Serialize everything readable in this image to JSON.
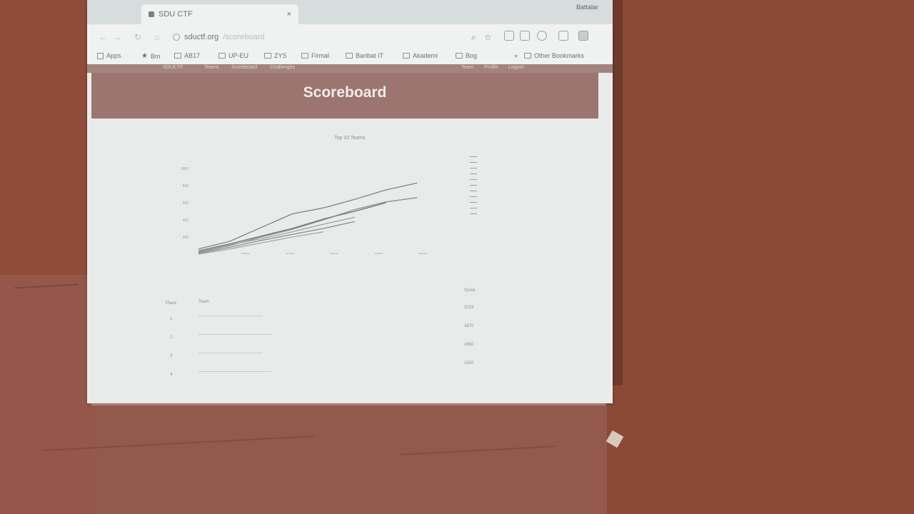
{
  "browser": {
    "tab_title": "SDU CTF",
    "tab_close": "×",
    "profile": "Battalar",
    "url_domain": "sductf.org",
    "url_path": "/scoreboard",
    "bookmarks": [
      "Apps",
      "Bm",
      "AB17",
      "UP-EU",
      "ZYS",
      "Firmal",
      "Baribat IT",
      "Akademi",
      "Bog"
    ],
    "other_bookmarks": "Other Bookmarks"
  },
  "page_nav": {
    "left": [
      "SDUCTF",
      "Teams",
      "Scoreboard",
      "Challenges"
    ],
    "right": [
      "Team",
      "Profile",
      "Logout"
    ]
  },
  "header": {
    "title": "Scoreboard"
  },
  "chart_data": {
    "type": "line",
    "title": "Top 10 Teams",
    "y_ticks": [
      "1000",
      "800",
      "600",
      "400",
      "200"
    ],
    "x_ticks": [
      "",
      "",
      "",
      "",
      "",
      ""
    ],
    "ylim": [
      0,
      1000
    ],
    "series": [
      {
        "name": "",
        "points": [
          [
            0,
            60
          ],
          [
            1,
            150
          ],
          [
            2,
            310
          ],
          [
            3,
            470
          ],
          [
            4,
            540
          ],
          [
            5,
            640
          ],
          [
            6,
            750
          ],
          [
            7,
            830
          ]
        ]
      },
      {
        "name": "",
        "points": [
          [
            0,
            20
          ],
          [
            1,
            100
          ],
          [
            2,
            200
          ],
          [
            3,
            290
          ],
          [
            4,
            400
          ],
          [
            5,
            520
          ],
          [
            6,
            610
          ],
          [
            7,
            660
          ]
        ]
      },
      {
        "name": "",
        "points": [
          [
            0,
            40
          ],
          [
            1,
            120
          ],
          [
            2,
            210
          ],
          [
            3,
            300
          ],
          [
            4,
            410
          ],
          [
            5,
            500
          ],
          [
            6,
            600
          ]
        ]
      },
      {
        "name": "",
        "points": [
          [
            0,
            30
          ],
          [
            1,
            110
          ],
          [
            2,
            180
          ],
          [
            3,
            260
          ],
          [
            4,
            350
          ],
          [
            5,
            430
          ]
        ]
      },
      {
        "name": "",
        "points": [
          [
            0,
            10
          ],
          [
            1,
            80
          ],
          [
            2,
            160
          ],
          [
            3,
            230
          ],
          [
            4,
            300
          ],
          [
            5,
            380
          ]
        ]
      },
      {
        "name": "",
        "points": [
          [
            0,
            0
          ],
          [
            1,
            60
          ],
          [
            2,
            130
          ],
          [
            3,
            200
          ],
          [
            4,
            260
          ]
        ]
      }
    ]
  },
  "legend": [
    "",
    "",
    "",
    "",
    "",
    "",
    "",
    "",
    "",
    "",
    ""
  ],
  "table": {
    "rank_header": "Place",
    "team_header": "Team",
    "score_header": "Score",
    "rows": [
      {
        "rank": "1",
        "team": "",
        "score": "2019"
      },
      {
        "rank": "2",
        "team": "",
        "score": "1870"
      },
      {
        "rank": "3",
        "team": "",
        "score": "1682"
      },
      {
        "rank": "4",
        "team": "",
        "score": "1520"
      }
    ]
  }
}
